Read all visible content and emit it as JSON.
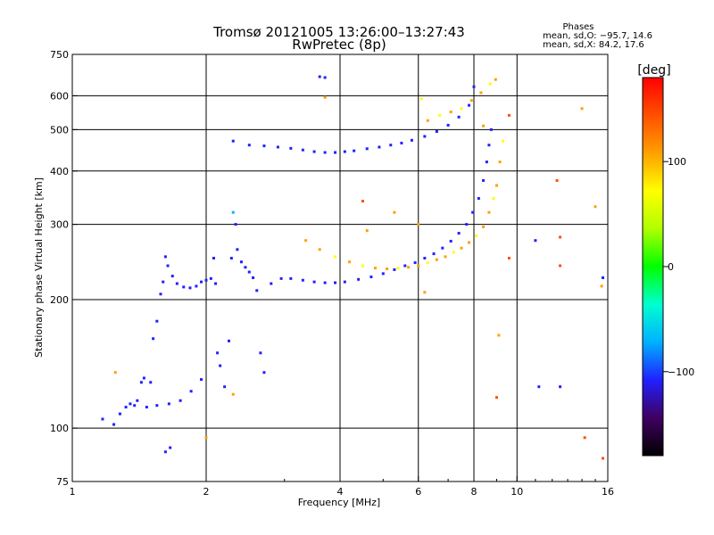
{
  "header": {
    "title_line1": "Tromsø 20121005 13:26:00–13:27:43",
    "title_line2": "RwPretec (8p)",
    "stats_heading": "Phases",
    "stats_o": "mean, sd,O: −95.7, 14.6",
    "stats_x": "mean, sd,X:  84.2, 17.6"
  },
  "chart_data": {
    "type": "scatter",
    "xlabel": "Frequency [MHz]",
    "ylabel": "Stationary phase Virtual Height [km]",
    "x_scale": "log2",
    "y_scale": "log",
    "xlim": [
      1,
      16
    ],
    "ylim": [
      75,
      750
    ],
    "x_ticks": [
      1,
      2,
      4,
      6,
      8,
      10,
      16
    ],
    "x_tick_labels": [
      "1",
      "2",
      "4",
      "6",
      "8",
      "10",
      "16"
    ],
    "y_ticks": [
      75,
      100,
      200,
      300,
      400,
      500,
      600,
      750
    ],
    "y_tick_labels": [
      "75",
      "100",
      "200",
      "300",
      "400",
      "500",
      "600",
      "750"
    ],
    "grid": true,
    "colorbar": {
      "label": "[deg]",
      "range": [
        -180,
        180
      ],
      "ticks": [
        100,
        0,
        -100
      ],
      "tick_labels": [
        "100",
        "0",
        "−100"
      ],
      "colors": [
        "#000000",
        "#400060",
        "#2020ff",
        "#00b0ff",
        "#00ffd0",
        "#00ff00",
        "#b0ff00",
        "#ffff00",
        "#ffa000",
        "#ff5000",
        "#ff0000"
      ]
    },
    "series": [
      {
        "mode": "O",
        "points": [
          [
            1.17,
            105,
            -105
          ],
          [
            1.24,
            102,
            -108
          ],
          [
            1.28,
            108,
            -110
          ],
          [
            1.32,
            112,
            -100
          ],
          [
            1.35,
            114,
            -98
          ],
          [
            1.38,
            113,
            -102
          ],
          [
            1.4,
            116,
            -100
          ],
          [
            1.43,
            128,
            -95
          ],
          [
            1.45,
            131,
            -97
          ],
          [
            1.5,
            128,
            -100
          ],
          [
            1.52,
            162,
            -110
          ],
          [
            1.55,
            178,
            -95
          ],
          [
            1.58,
            206,
            -100
          ],
          [
            1.6,
            220,
            -98
          ],
          [
            1.62,
            252,
            -100
          ],
          [
            1.64,
            240,
            -110
          ],
          [
            1.62,
            88,
            -110
          ],
          [
            1.66,
            90,
            -105
          ],
          [
            1.68,
            227,
            -100
          ],
          [
            1.72,
            218,
            -95
          ],
          [
            1.78,
            214,
            -100
          ],
          [
            1.84,
            213,
            -104
          ],
          [
            1.9,
            215,
            -100
          ],
          [
            1.95,
            220,
            -96
          ],
          [
            2.0,
            222,
            -100
          ],
          [
            2.05,
            224,
            -104
          ],
          [
            2.08,
            250,
            -100
          ],
          [
            2.1,
            218,
            -98
          ],
          [
            2.12,
            150,
            -110
          ],
          [
            2.15,
            140,
            -100
          ],
          [
            1.95,
            130,
            -110
          ],
          [
            1.85,
            122,
            -100
          ],
          [
            1.75,
            116,
            -96
          ],
          [
            1.65,
            114,
            -100
          ],
          [
            1.55,
            113,
            -104
          ],
          [
            1.47,
            112,
            -100
          ],
          [
            2.2,
            125,
            -110
          ],
          [
            2.25,
            160,
            -100
          ],
          [
            2.28,
            250,
            -96
          ],
          [
            2.3,
            320,
            -90
          ],
          [
            2.33,
            300,
            -100
          ],
          [
            2.35,
            262,
            -104
          ],
          [
            2.4,
            245,
            -100
          ],
          [
            2.45,
            238,
            -98
          ],
          [
            2.5,
            232,
            -102
          ],
          [
            2.55,
            225,
            -100
          ],
          [
            2.6,
            210,
            -110
          ],
          [
            2.65,
            150,
            -100
          ],
          [
            2.7,
            135,
            -96
          ],
          [
            2.8,
            218,
            -100
          ],
          [
            2.95,
            224,
            -104
          ],
          [
            3.1,
            224,
            -100
          ],
          [
            3.3,
            222,
            -98
          ],
          [
            3.5,
            220,
            -102
          ],
          [
            3.7,
            219,
            -100
          ],
          [
            3.9,
            219,
            -104
          ],
          [
            4.1,
            220,
            -100
          ],
          [
            4.4,
            223,
            -98
          ],
          [
            4.7,
            226,
            -100
          ],
          [
            5.0,
            230,
            -104
          ],
          [
            5.3,
            235,
            -100
          ],
          [
            5.6,
            240,
            -96
          ],
          [
            5.9,
            244,
            -100
          ],
          [
            6.2,
            250,
            -104
          ],
          [
            6.5,
            256,
            -100
          ],
          [
            6.8,
            264,
            -98
          ],
          [
            7.1,
            274,
            -100
          ],
          [
            7.4,
            286,
            -104
          ],
          [
            7.7,
            300,
            -100
          ],
          [
            7.95,
            320,
            -96
          ],
          [
            8.2,
            345,
            -100
          ],
          [
            8.4,
            380,
            -104
          ],
          [
            8.55,
            420,
            -100
          ],
          [
            8.65,
            460,
            -96
          ],
          [
            8.75,
            500,
            -100
          ],
          [
            2.3,
            470,
            -100
          ],
          [
            2.5,
            460,
            -104
          ],
          [
            2.7,
            458,
            -100
          ],
          [
            2.9,
            455,
            -98
          ],
          [
            3.1,
            452,
            -100
          ],
          [
            3.3,
            448,
            -104
          ],
          [
            3.5,
            444,
            -100
          ],
          [
            3.7,
            442,
            -98
          ],
          [
            3.9,
            442,
            -100
          ],
          [
            4.1,
            444,
            -104
          ],
          [
            4.3,
            446,
            -100
          ],
          [
            4.6,
            451,
            -96
          ],
          [
            4.9,
            455,
            -100
          ],
          [
            5.2,
            460,
            -104
          ],
          [
            5.5,
            465,
            -100
          ],
          [
            5.8,
            472,
            -98
          ],
          [
            6.2,
            482,
            -100
          ],
          [
            6.6,
            495,
            -104
          ],
          [
            7.0,
            512,
            -100
          ],
          [
            7.4,
            535,
            -96
          ],
          [
            7.8,
            570,
            -100
          ],
          [
            8.0,
            630,
            -104
          ],
          [
            3.6,
            665,
            -110
          ],
          [
            3.7,
            662,
            -106
          ],
          [
            11.0,
            275,
            -110
          ],
          [
            11.2,
            125,
            -100
          ],
          [
            12.5,
            125,
            -104
          ],
          [
            15.6,
            225,
            -100
          ]
        ]
      },
      {
        "mode": "X",
        "points": [
          [
            3.35,
            275,
            90
          ],
          [
            3.6,
            262,
            95
          ],
          [
            3.9,
            252,
            88
          ],
          [
            4.2,
            245,
            92
          ],
          [
            4.5,
            240,
            85
          ],
          [
            4.8,
            237,
            90
          ],
          [
            5.1,
            236,
            94
          ],
          [
            5.4,
            237,
            88
          ],
          [
            5.7,
            238,
            90
          ],
          [
            6.0,
            240,
            110
          ],
          [
            6.3,
            244,
            86
          ],
          [
            6.6,
            248,
            90
          ],
          [
            6.9,
            252,
            94
          ],
          [
            7.2,
            258,
            88
          ],
          [
            7.5,
            264,
            92
          ],
          [
            7.8,
            272,
            90
          ],
          [
            8.1,
            282,
            86
          ],
          [
            8.4,
            296,
            90
          ],
          [
            8.65,
            320,
            94
          ],
          [
            8.85,
            345,
            88
          ],
          [
            9.0,
            370,
            90
          ],
          [
            9.15,
            420,
            96
          ],
          [
            9.3,
            470,
            88
          ],
          [
            6.0,
            300,
            100
          ],
          [
            6.3,
            525,
            90
          ],
          [
            6.7,
            540,
            86
          ],
          [
            7.1,
            550,
            92
          ],
          [
            7.5,
            560,
            88
          ],
          [
            7.9,
            585,
            90
          ],
          [
            8.3,
            610,
            94
          ],
          [
            8.7,
            640,
            88
          ],
          [
            8.95,
            655,
            92
          ],
          [
            4.6,
            290,
            110
          ],
          [
            4.5,
            340,
            140
          ],
          [
            8.4,
            510,
            120
          ],
          [
            9.6,
            540,
            130
          ],
          [
            9.6,
            250,
            140
          ],
          [
            12.3,
            380,
            130
          ],
          [
            12.5,
            280,
            150
          ],
          [
            12.5,
            240,
            145
          ],
          [
            14.0,
            560,
            110
          ],
          [
            15.0,
            330,
            100
          ],
          [
            15.5,
            215,
            95
          ],
          [
            15.6,
            85,
            150
          ],
          [
            14.2,
            95,
            140
          ],
          [
            1.25,
            135,
            100
          ],
          [
            2.0,
            95,
            110
          ],
          [
            2.3,
            120,
            120
          ],
          [
            5.3,
            320,
            110
          ],
          [
            9.0,
            118,
            130
          ],
          [
            9.1,
            165,
            120
          ],
          [
            6.2,
            208,
            90
          ],
          [
            3.7,
            595,
            100
          ],
          [
            6.1,
            590,
            60
          ]
        ]
      }
    ]
  }
}
